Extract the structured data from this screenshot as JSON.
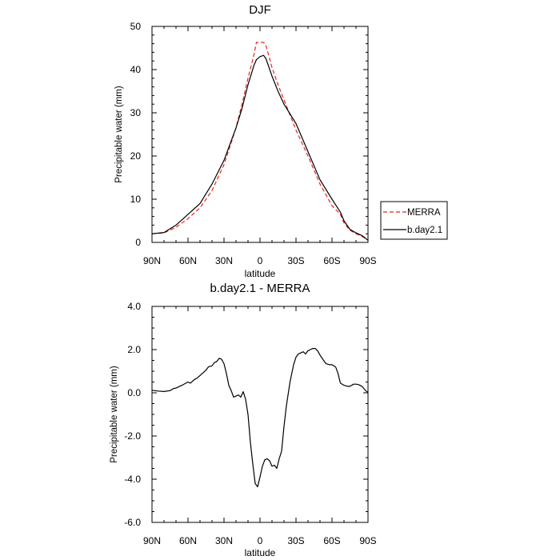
{
  "chart_data": [
    {
      "type": "line",
      "title": "DJF",
      "xlabel": "latitude",
      "ylabel": "Precipitable water (mm)",
      "xlim": [
        -90,
        90
      ],
      "ylim": [
        0,
        50
      ],
      "xticks": [
        -90,
        -60,
        -30,
        0,
        30,
        60,
        90
      ],
      "xtick_labels": [
        "90N",
        "60N",
        "30N",
        "0",
        "30S",
        "60S",
        "90S"
      ],
      "yticks": [
        0,
        10,
        20,
        30,
        40,
        50
      ],
      "ytick_labels": [
        "0",
        "10",
        "20",
        "30",
        "40",
        "50"
      ],
      "legend_position": "right",
      "series": [
        {
          "name": "MERRA",
          "color": "#e8241c",
          "dash": "dashed",
          "x": [
            -90,
            -80,
            -70,
            -60,
            -50,
            -40,
            -30,
            -20,
            -15,
            -10,
            -5,
            -3,
            0,
            3,
            5,
            10,
            15,
            20,
            30,
            40,
            50,
            60,
            67,
            70,
            75,
            80,
            85,
            90
          ],
          "y": [
            2.0,
            2.2,
            3.5,
            5.5,
            8.0,
            12.0,
            18.0,
            26.5,
            32.0,
            38.0,
            43.5,
            46.3,
            46.3,
            46.3,
            45.5,
            40.5,
            36.5,
            33.0,
            26.0,
            20.0,
            13.5,
            8.5,
            6.5,
            4.5,
            2.8,
            2.0,
            1.4,
            0.5
          ]
        },
        {
          "name": "b.day2.1",
          "color": "#000000",
          "dash": "solid",
          "x": [
            -90,
            -80,
            -70,
            -60,
            -50,
            -40,
            -30,
            -20,
            -15,
            -10,
            -5,
            -3,
            0,
            3,
            5,
            10,
            15,
            20,
            30,
            40,
            50,
            60,
            67,
            70,
            75,
            80,
            85,
            90
          ],
          "y": [
            2.0,
            2.3,
            4.0,
            6.5,
            9.0,
            13.5,
            19.0,
            26.5,
            31.0,
            36.5,
            41.0,
            42.3,
            43.0,
            43.3,
            42.5,
            38.5,
            35.0,
            32.0,
            27.5,
            21.0,
            14.5,
            10.0,
            7.0,
            5.0,
            3.0,
            2.2,
            1.6,
            0.5
          ]
        }
      ]
    },
    {
      "type": "line",
      "title": "b.day2.1 - MERRA",
      "xlabel": "latitude",
      "ylabel": "Precipitable water (mm)",
      "xlim": [
        -90,
        90
      ],
      "ylim": [
        -6.0,
        4.0
      ],
      "xticks": [
        -90,
        -60,
        -30,
        0,
        30,
        60,
        90
      ],
      "xtick_labels": [
        "90N",
        "60N",
        "30N",
        "0",
        "30S",
        "60S",
        "90S"
      ],
      "yticks": [
        -6,
        -4,
        -2,
        0,
        2,
        4
      ],
      "ytick_labels": [
        "-6.0",
        "-4.0",
        "-2.0",
        "0.0",
        "2.0",
        "4.0"
      ],
      "series": [
        {
          "name": "b.day2.1 - MERRA",
          "color": "#000000",
          "dash": "solid",
          "x": [
            -90,
            -85,
            -80,
            -75,
            -72,
            -70,
            -65,
            -60,
            -58,
            -55,
            -52,
            -50,
            -47,
            -45,
            -43,
            -40,
            -38,
            -36,
            -34,
            -32,
            -30,
            -28,
            -26,
            -24,
            -22,
            -20,
            -18,
            -16,
            -14,
            -12,
            -10,
            -8,
            -6,
            -4,
            -2,
            0,
            2,
            4,
            6,
            8,
            10,
            12,
            14,
            16,
            18,
            20,
            22,
            25,
            28,
            30,
            32,
            34,
            36,
            38,
            40,
            42,
            44,
            46,
            48,
            50,
            53,
            55,
            58,
            60,
            63,
            65,
            67,
            70,
            73,
            75,
            78,
            80,
            82,
            85,
            88,
            90
          ],
          "y": [
            0.12,
            0.08,
            0.06,
            0.1,
            0.2,
            0.22,
            0.35,
            0.5,
            0.45,
            0.6,
            0.7,
            0.8,
            0.95,
            1.05,
            1.2,
            1.25,
            1.4,
            1.45,
            1.6,
            1.55,
            1.35,
            0.9,
            0.35,
            0.1,
            -0.2,
            -0.15,
            -0.1,
            -0.2,
            0.05,
            -0.3,
            -1.0,
            -2.3,
            -3.3,
            -4.2,
            -4.35,
            -3.9,
            -3.4,
            -3.1,
            -3.05,
            -3.15,
            -3.4,
            -3.35,
            -3.5,
            -3.05,
            -2.7,
            -1.55,
            -0.6,
            0.5,
            1.3,
            1.65,
            1.8,
            1.85,
            1.9,
            1.8,
            1.95,
            2.0,
            2.05,
            2.05,
            1.95,
            1.75,
            1.5,
            1.35,
            1.3,
            1.3,
            1.2,
            0.9,
            0.45,
            0.35,
            0.3,
            0.3,
            0.4,
            0.4,
            0.38,
            0.3,
            0.1,
            0.02
          ]
        }
      ]
    }
  ]
}
